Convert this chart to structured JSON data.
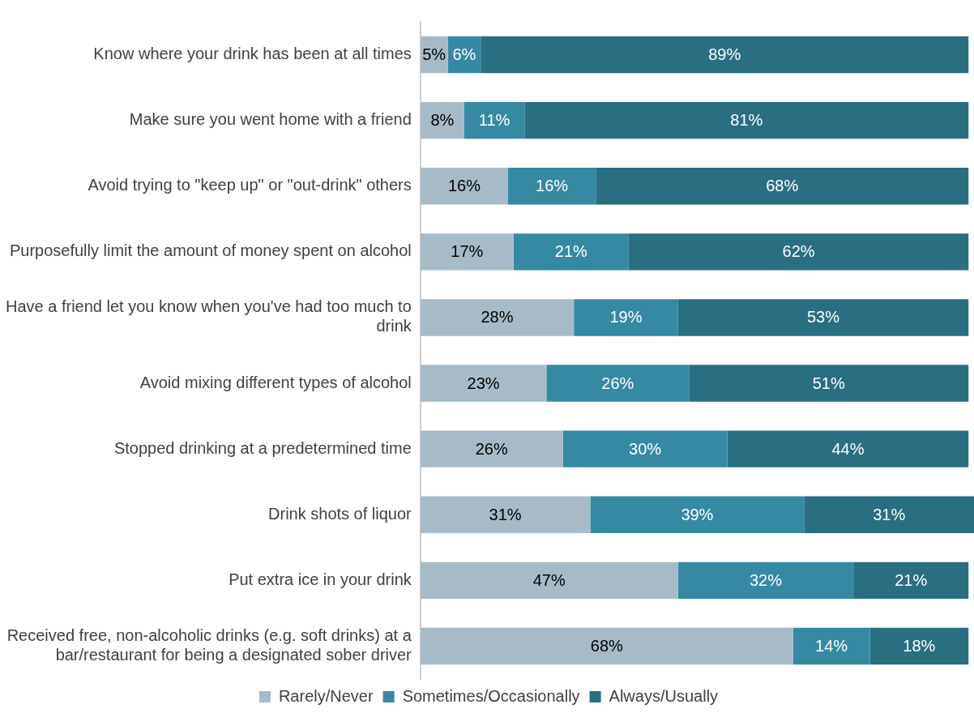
{
  "chart_data": {
    "type": "bar",
    "orientation": "horizontal",
    "stacked": true,
    "legend": "bottom",
    "tick_labels": "y",
    "xlim": [
      0,
      101
    ],
    "categories": [
      "Know where your drink has been at all times",
      "Make sure you went home with a friend",
      "Avoid trying to \"keep up\" or \"out-drink\" others",
      "Purposefully limit the amount of money spent on alcohol",
      "Have a friend let you know when you've had too much to drink",
      "Avoid mixing different types of alcohol",
      "Stopped drinking at a predetermined time",
      "Drink shots of liquor",
      "Put extra ice in your drink",
      "Received free, non-alcoholic drinks (e.g. soft drinks) at a bar/restaurant for being a designated sober driver"
    ],
    "series": [
      {
        "name": "Rarely/Never",
        "color": "#a6bbc7",
        "values": [
          5,
          8,
          16,
          17,
          28,
          23,
          26,
          31,
          47,
          68
        ],
        "value_labels": [
          "5%",
          "8%",
          "16%",
          "17%",
          "28%",
          "23%",
          "26%",
          "31%",
          "47%",
          "68%"
        ]
      },
      {
        "name": "Sometimes/Occasionally",
        "color": "#3689a3",
        "values": [
          6,
          11,
          16,
          21,
          19,
          26,
          30,
          39,
          32,
          14
        ],
        "value_labels": [
          "6%",
          "11%",
          "16%",
          "21%",
          "19%",
          "26%",
          "30%",
          "39%",
          "32%",
          "14%"
        ]
      },
      {
        "name": "Always/Usually",
        "color": "#2a6e82",
        "values": [
          89,
          81,
          68,
          62,
          53,
          51,
          44,
          31,
          21,
          18
        ],
        "value_labels": [
          "89%",
          "81%",
          "68%",
          "62%",
          "53%",
          "51%",
          "44%",
          "31%",
          "21%",
          "18%"
        ]
      }
    ]
  }
}
